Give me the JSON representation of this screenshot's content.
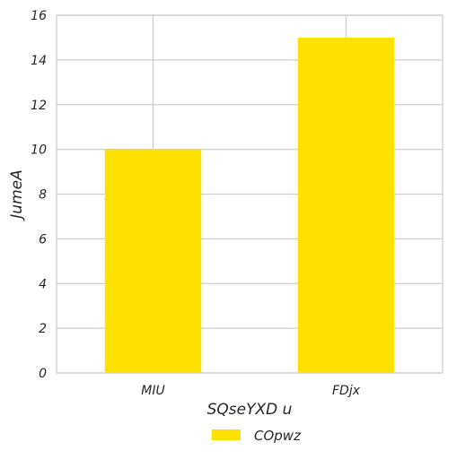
{
  "chart_data": {
    "type": "bar",
    "title": "",
    "categories": [
      "MIU",
      "FDjx"
    ],
    "series": [
      {
        "name": "COpwz",
        "values": [
          10,
          15
        ],
        "color": "#FFE100"
      }
    ],
    "xlabel": "SQseYXD u",
    "ylabel": "JumeA",
    "ylim": [
      0,
      16
    ],
    "yticks": [
      0,
      2,
      4,
      6,
      8,
      10,
      12,
      14,
      16
    ],
    "grid": true,
    "legend_position": "bottom-center",
    "colors": {
      "grid": "#CCCCCC",
      "axes_edge": "#CCCCCC",
      "text": "#262626"
    }
  }
}
